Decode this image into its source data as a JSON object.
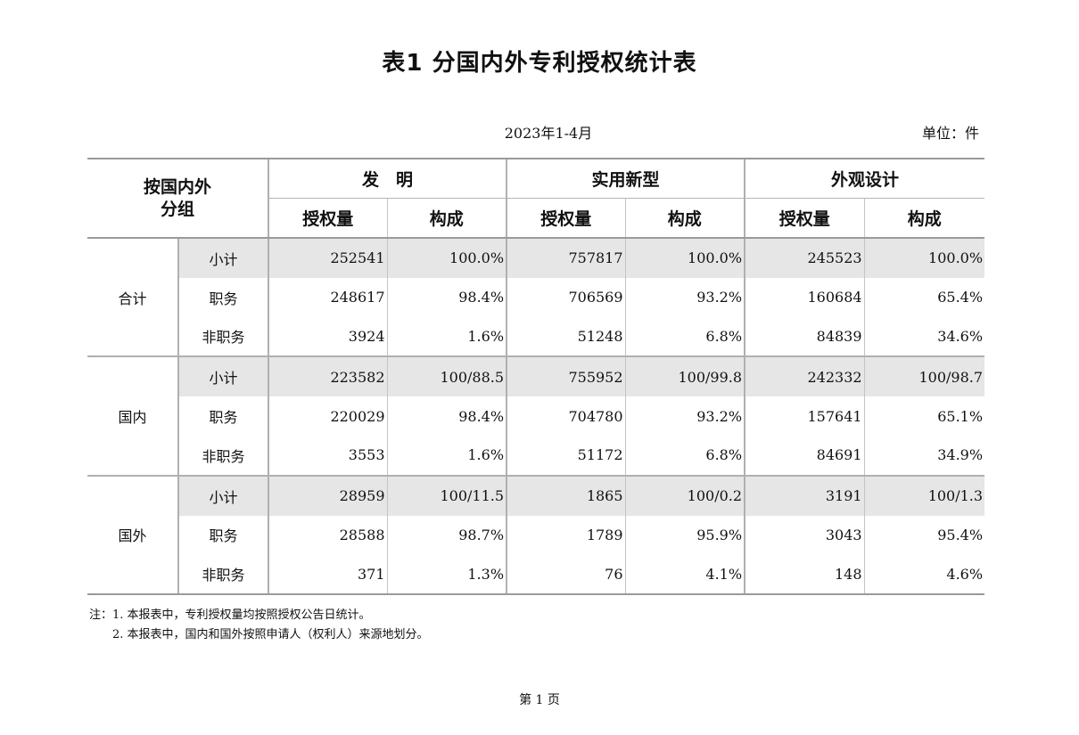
{
  "title": "表1  分国内外专利授权统计表",
  "period": "2023年1-4月",
  "unit": "单位：件",
  "table": {
    "group_header": "按国内外\n分组",
    "categories": [
      "发　明",
      "实用新型",
      "外观设计"
    ],
    "sub_headers": [
      "授权量",
      "构成"
    ],
    "groups": [
      {
        "name": "合计",
        "rows": [
          {
            "label": "小计",
            "values": [
              "252541",
              "100.0%",
              "757817",
              "100.0%",
              "245523",
              "100.0%"
            ]
          },
          {
            "label": "职务",
            "values": [
              "248617",
              "98.4%",
              "706569",
              "93.2%",
              "160684",
              "65.4%"
            ]
          },
          {
            "label": "非职务",
            "values": [
              "3924",
              "1.6%",
              "51248",
              "6.8%",
              "84839",
              "34.6%"
            ]
          }
        ]
      },
      {
        "name": "国内",
        "rows": [
          {
            "label": "小计",
            "values": [
              "223582",
              "100/88.5",
              "755952",
              "100/99.8",
              "242332",
              "100/98.7"
            ]
          },
          {
            "label": "职务",
            "values": [
              "220029",
              "98.4%",
              "704780",
              "93.2%",
              "157641",
              "65.1%"
            ]
          },
          {
            "label": "非职务",
            "values": [
              "3553",
              "1.6%",
              "51172",
              "6.8%",
              "84691",
              "34.9%"
            ]
          }
        ]
      },
      {
        "name": "国外",
        "rows": [
          {
            "label": "小计",
            "values": [
              "28959",
              "100/11.5",
              "1865",
              "100/0.2",
              "3191",
              "100/1.3"
            ]
          },
          {
            "label": "职务",
            "values": [
              "28588",
              "98.7%",
              "1789",
              "95.9%",
              "3043",
              "95.4%"
            ]
          },
          {
            "label": "非职务",
            "values": [
              "371",
              "1.3%",
              "76",
              "4.1%",
              "148",
              "4.6%"
            ]
          }
        ]
      }
    ]
  },
  "notes": [
    "注：1. 本报表中，专利授权量均按照授权公告日统计。",
    "　　2. 本报表中，国内和国外按照申请人（权利人）来源地划分。"
  ],
  "page_label": "第  1  页"
}
